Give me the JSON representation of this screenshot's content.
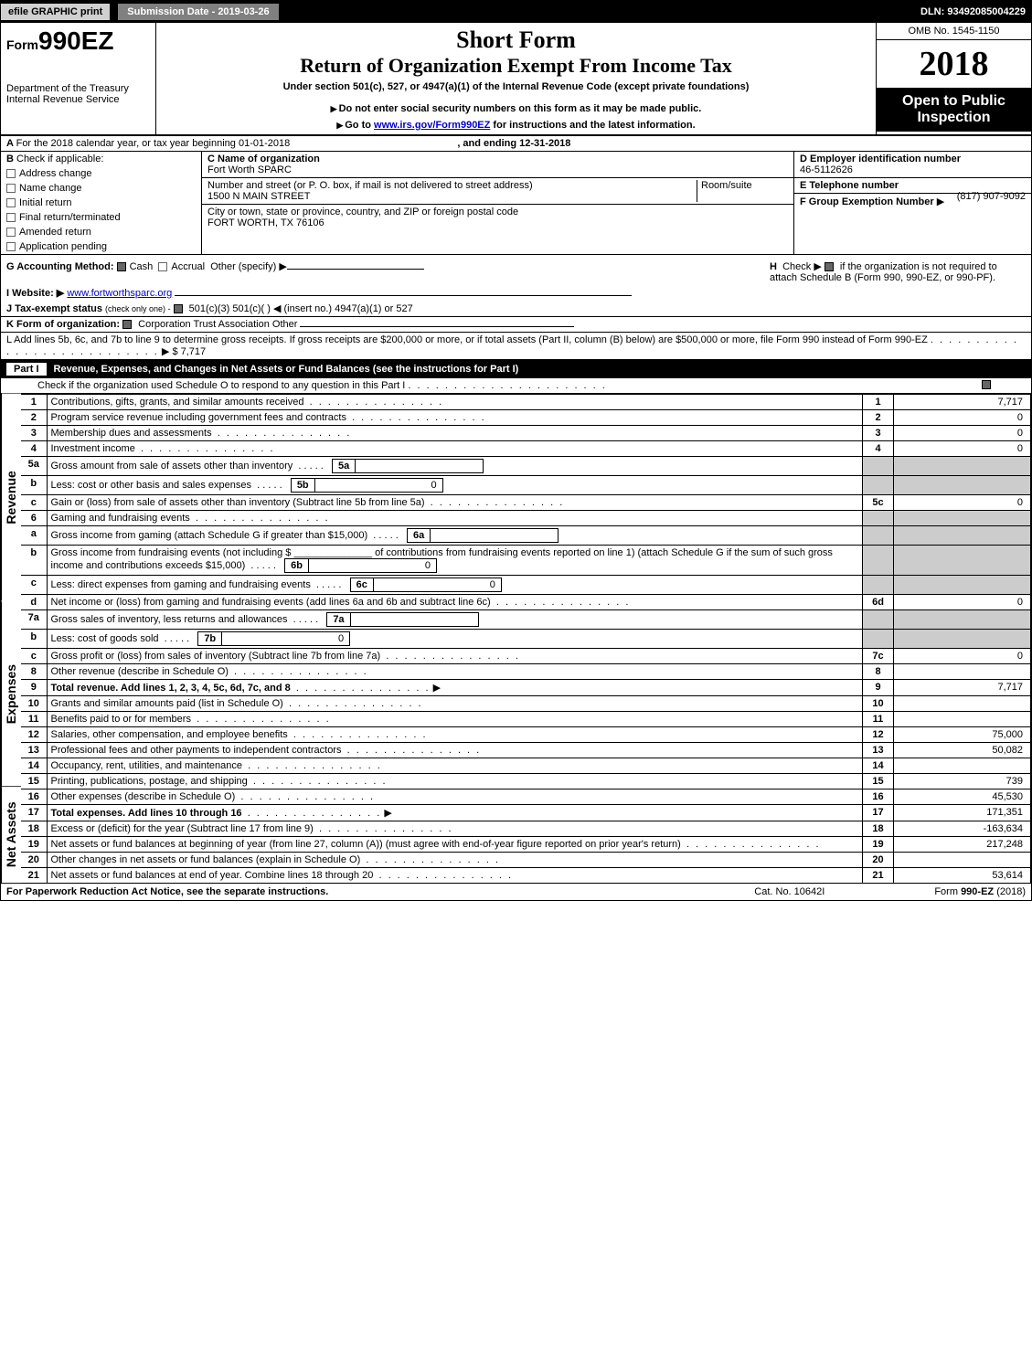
{
  "topbar": {
    "efile_btn": "efile GRAPHIC print",
    "submission": "Submission Date - 2019-03-26",
    "dln": "DLN: 93492085004229"
  },
  "header": {
    "form_prefix": "Form",
    "form_number": "990EZ",
    "dept": "Department of the Treasury",
    "irs": "Internal Revenue Service",
    "title_short": "Short Form",
    "title_main": "Return of Organization Exempt From Income Tax",
    "title_under": "Under section 501(c), 527, or 4947(a)(1) of the Internal Revenue Code (except private foundations)",
    "instr1": "Do not enter social security numbers on this form as it may be made public.",
    "instr2_prefix": "Go to ",
    "instr2_link": "www.irs.gov/Form990EZ",
    "instr2_suffix": " for instructions and the latest information.",
    "omb": "OMB No. 1545-1150",
    "year": "2018",
    "open_public": "Open to Public Inspection"
  },
  "boxA": {
    "line": "For the 2018 calendar year, or tax year beginning 01-01-2018",
    "ending": ", and ending 12-31-2018"
  },
  "boxB": {
    "label": "Check if applicable:",
    "opts": [
      "Address change",
      "Name change",
      "Initial return",
      "Final return/terminated",
      "Amended return",
      "Application pending"
    ]
  },
  "boxC": {
    "label": "C Name of organization",
    "value": "Fort Worth SPARC",
    "addr_label": "Number and street (or P. O. box, if mail is not delivered to street address)",
    "addr": "1500 N MAIN STREET",
    "room_label": "Room/suite",
    "city_label": "City or town, state or province, country, and ZIP or foreign postal code",
    "city": "FORT WORTH, TX  76106"
  },
  "boxD": {
    "label": "D Employer identification number",
    "value": "46-5112626"
  },
  "boxE": {
    "label": "E Telephone number",
    "value": "(817) 907-9092"
  },
  "boxF": {
    "label": "F Group Exemption Number",
    "arrow": "▶"
  },
  "boxG": {
    "label": "G Accounting Method:",
    "cash": "Cash",
    "accrual": "Accrual",
    "other": "Other (specify) ▶"
  },
  "boxH": {
    "label": "H",
    "text": "Check ▶",
    "text2": "if the organization is not required to attach Schedule B (Form 990, 990-EZ, or 990-PF)."
  },
  "boxI": {
    "label": "I Website: ▶",
    "value": "www.fortworthsparc.org"
  },
  "boxJ": {
    "label": "J Tax-exempt status",
    "note": "(check only one) -",
    "opts": "501(c)(3)    501(c)(  ) ◀ (insert no.)    4947(a)(1) or    527"
  },
  "boxK": {
    "label": "K Form of organization:",
    "opts": "Corporation    Trust    Association    Other"
  },
  "boxL": {
    "text": "L Add lines 5b, 6c, and 7b to line 9 to determine gross receipts. If gross receipts are $200,000 or more, or if total assets (Part II, column (B) below) are $500,000 or more, file Form 990 instead of Form 990-EZ",
    "amount": "$ 7,717"
  },
  "part1": {
    "title": "Part I",
    "heading": "Revenue, Expenses, and Changes in Net Assets or Fund Balances (see the instructions for Part I)",
    "check_line": "Check if the organization used Schedule O to respond to any question in this Part I"
  },
  "sections": {
    "revenue": "Revenue",
    "expenses": "Expenses",
    "netassets": "Net Assets"
  },
  "lines": [
    {
      "n": "1",
      "desc": "Contributions, gifts, grants, and similar amounts received",
      "box": "1",
      "amt": "7,717"
    },
    {
      "n": "2",
      "desc": "Program service revenue including government fees and contracts",
      "box": "2",
      "amt": "0"
    },
    {
      "n": "3",
      "desc": "Membership dues and assessments",
      "box": "3",
      "amt": "0"
    },
    {
      "n": "4",
      "desc": "Investment income",
      "box": "4",
      "amt": "0"
    },
    {
      "n": "5a",
      "desc": "Gross amount from sale of assets other than inventory",
      "inner": "5a",
      "inner_amt": ""
    },
    {
      "n": "b",
      "desc": "Less: cost or other basis and sales expenses",
      "inner": "5b",
      "inner_amt": "0"
    },
    {
      "n": "c",
      "desc": "Gain or (loss) from sale of assets other than inventory (Subtract line 5b from line 5a)",
      "box": "5c",
      "amt": "0"
    },
    {
      "n": "6",
      "desc": "Gaming and fundraising events",
      "shaded": true
    },
    {
      "n": "a",
      "desc": "Gross income from gaming (attach Schedule G if greater than $15,000)",
      "inner": "6a",
      "inner_amt": ""
    },
    {
      "n": "b",
      "desc": "Gross income from fundraising events (not including $ ______________ of contributions from fundraising events reported on line 1) (attach Schedule G if the sum of such gross income and contributions exceeds $15,000)",
      "inner": "6b",
      "inner_amt": "0"
    },
    {
      "n": "c",
      "desc": "Less: direct expenses from gaming and fundraising events",
      "inner": "6c",
      "inner_amt": "0"
    },
    {
      "n": "d",
      "desc": "Net income or (loss) from gaming and fundraising events (add lines 6a and 6b and subtract line 6c)",
      "box": "6d",
      "amt": "0"
    },
    {
      "n": "7a",
      "desc": "Gross sales of inventory, less returns and allowances",
      "inner": "7a",
      "inner_amt": ""
    },
    {
      "n": "b",
      "desc": "Less: cost of goods sold",
      "inner": "7b",
      "inner_amt": "0"
    },
    {
      "n": "c",
      "desc": "Gross profit or (loss) from sales of inventory (Subtract line 7b from line 7a)",
      "box": "7c",
      "amt": "0"
    },
    {
      "n": "8",
      "desc": "Other revenue (describe in Schedule O)",
      "box": "8",
      "amt": ""
    },
    {
      "n": "9",
      "desc": "Total revenue. Add lines 1, 2, 3, 4, 5c, 6d, 7c, and 8",
      "box": "9",
      "amt": "7,717",
      "bold": true,
      "arrow": true
    },
    {
      "n": "10",
      "desc": "Grants and similar amounts paid (list in Schedule O)",
      "box": "10",
      "amt": ""
    },
    {
      "n": "11",
      "desc": "Benefits paid to or for members",
      "box": "11",
      "amt": ""
    },
    {
      "n": "12",
      "desc": "Salaries, other compensation, and employee benefits",
      "box": "12",
      "amt": "75,000"
    },
    {
      "n": "13",
      "desc": "Professional fees and other payments to independent contractors",
      "box": "13",
      "amt": "50,082"
    },
    {
      "n": "14",
      "desc": "Occupancy, rent, utilities, and maintenance",
      "box": "14",
      "amt": ""
    },
    {
      "n": "15",
      "desc": "Printing, publications, postage, and shipping",
      "box": "15",
      "amt": "739"
    },
    {
      "n": "16",
      "desc": "Other expenses (describe in Schedule O)",
      "box": "16",
      "amt": "45,530"
    },
    {
      "n": "17",
      "desc": "Total expenses. Add lines 10 through 16",
      "box": "17",
      "amt": "171,351",
      "bold": true,
      "arrow": true
    },
    {
      "n": "18",
      "desc": "Excess or (deficit) for the year (Subtract line 17 from line 9)",
      "box": "18",
      "amt": "-163,634"
    },
    {
      "n": "19",
      "desc": "Net assets or fund balances at beginning of year (from line 27, column (A)) (must agree with end-of-year figure reported on prior year's return)",
      "box": "19",
      "amt": "217,248"
    },
    {
      "n": "20",
      "desc": "Other changes in net assets or fund balances (explain in Schedule O)",
      "box": "20",
      "amt": ""
    },
    {
      "n": "21",
      "desc": "Net assets or fund balances at end of year. Combine lines 18 through 20",
      "box": "21",
      "amt": "53,614"
    }
  ],
  "footer": {
    "left": "For Paperwork Reduction Act Notice, see the separate instructions.",
    "mid": "Cat. No. 10642I",
    "right": "Form 990-EZ (2018)"
  },
  "colors": {
    "black": "#000000",
    "gray_shade": "#cccccc",
    "link": "#0000cc"
  }
}
